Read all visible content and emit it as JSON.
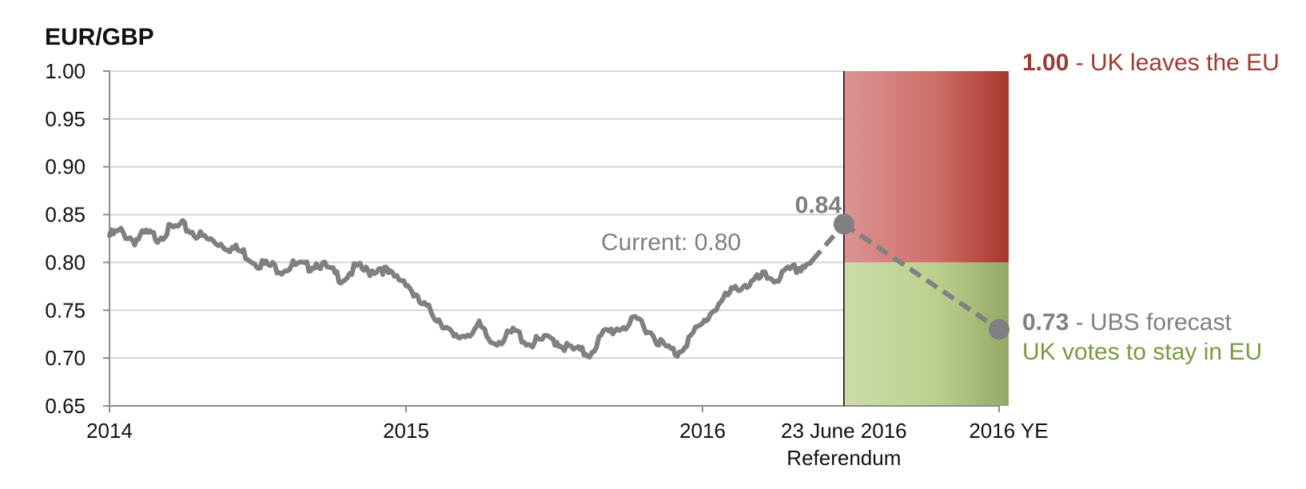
{
  "chart_data": {
    "type": "line",
    "title": "EUR/GBP",
    "y_ticks": [
      "1.00",
      "0.95",
      "0.90",
      "0.85",
      "0.80",
      "0.75",
      "0.70",
      "0.65"
    ],
    "ylim": [
      0.65,
      1.0
    ],
    "grid": true,
    "x_ticks": [
      {
        "value": "2014-01-01",
        "label": "2014"
      },
      {
        "value": "2015-01-01",
        "label": "2015"
      },
      {
        "value": "2016-01-01",
        "label": "2016"
      }
    ],
    "xlim": [
      "2014-01-01",
      "2017-01-01"
    ],
    "scenario_ticks": [
      {
        "label_line1": "23 June 2016",
        "label_line2": "Referendum"
      },
      {
        "label_line1": "2016 YE",
        "label_line2": ""
      }
    ],
    "series": [
      {
        "color": "#808080",
        "x": [
          "2014-01-01",
          "2014-01-15",
          "2014-02-01",
          "2014-02-15",
          "2014-03-01",
          "2014-03-15",
          "2014-04-01",
          "2014-04-15",
          "2014-05-01",
          "2014-05-15",
          "2014-06-01",
          "2014-06-15",
          "2014-07-01",
          "2014-07-15",
          "2014-08-01",
          "2014-08-15",
          "2014-09-01",
          "2014-09-15",
          "2014-10-01",
          "2014-10-15",
          "2014-11-01",
          "2014-11-15",
          "2014-12-01",
          "2014-12-15",
          "2015-01-01",
          "2015-01-15",
          "2015-02-01",
          "2015-02-15",
          "2015-03-01",
          "2015-03-15",
          "2015-04-01",
          "2015-04-15",
          "2015-05-01",
          "2015-05-15",
          "2015-06-01",
          "2015-06-15",
          "2015-07-01",
          "2015-07-15",
          "2015-08-01",
          "2015-08-15",
          "2015-09-01",
          "2015-09-15",
          "2015-10-01",
          "2015-10-15",
          "2015-11-01",
          "2015-11-15",
          "2015-12-01",
          "2015-12-15",
          "2016-01-01",
          "2016-01-15",
          "2016-02-01",
          "2016-02-15",
          "2016-03-01",
          "2016-03-15",
          "2016-04-01",
          "2016-04-15",
          "2016-05-01",
          "2016-05-15"
        ],
        "values": [
          0.828,
          0.832,
          0.823,
          0.83,
          0.826,
          0.834,
          0.838,
          0.831,
          0.824,
          0.821,
          0.815,
          0.81,
          0.8,
          0.797,
          0.793,
          0.797,
          0.795,
          0.8,
          0.79,
          0.783,
          0.795,
          0.79,
          0.795,
          0.785,
          0.781,
          0.76,
          0.748,
          0.737,
          0.72,
          0.725,
          0.733,
          0.717,
          0.72,
          0.728,
          0.715,
          0.718,
          0.72,
          0.712,
          0.707,
          0.705,
          0.725,
          0.73,
          0.735,
          0.74,
          0.724,
          0.712,
          0.705,
          0.72,
          0.735,
          0.752,
          0.765,
          0.775,
          0.778,
          0.785,
          0.783,
          0.79,
          0.795,
          0.802
        ]
      },
      {
        "style": "dashed",
        "color": "#808080",
        "x": [
          "2016-05-15",
          "2016-06-23"
        ],
        "values": [
          0.802,
          0.84
        ]
      },
      {
        "style": "dashed",
        "color": "#808080",
        "x": [
          "2016-06-23",
          "2016-12-31"
        ],
        "values": [
          0.84,
          0.73
        ]
      }
    ],
    "points": [
      {
        "x": "2016-06-23",
        "y": 0.84,
        "label": "0.84"
      },
      {
        "x": "2016-12-31",
        "y": 0.73
      }
    ],
    "bands": [
      {
        "name": "leave",
        "y_from": 0.8,
        "y_to": 1.0,
        "color_start": "#d99494",
        "color_end": "#a8372f"
      },
      {
        "name": "stay",
        "y_from": 0.65,
        "y_to": 0.8,
        "color_start": "#cddcaa",
        "color_end": "#96a868"
      }
    ],
    "annotations": {
      "current": "Current:  0.80",
      "leave_value": "1.00",
      "leave_text": " - UK leaves the EU",
      "leave_color": "#9e3a2e",
      "forecast_value": "0.73",
      "forecast_text": " - UBS forecast",
      "forecast_color": "#808080",
      "stay_text": "UK votes to stay in EU",
      "stay_color": "#7a9a3f"
    }
  }
}
